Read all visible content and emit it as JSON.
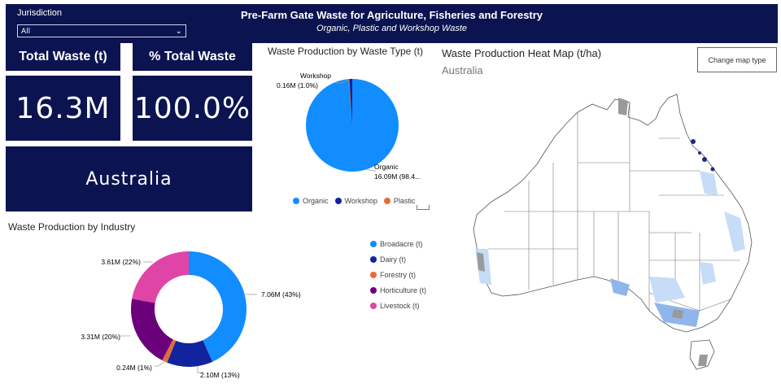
{
  "header": {
    "title": "Pre-Farm Gate Waste for Agriculture, Fisheries and Forestry",
    "subtitle": "Organic, Plastic and Workshop Waste",
    "jurisdiction_label": "Jurisdiction",
    "jurisdiction_value": "All"
  },
  "kpis": {
    "total_waste_label": "Total Waste (t)",
    "total_waste_value": "16.3M",
    "pct_total_label": "% Total Waste",
    "pct_total_value": "100.0%",
    "region_value": "Australia"
  },
  "waste_type_chart": {
    "title": "Waste Production by Waste Type (t)",
    "label_workshop_name": "Workshop",
    "label_workshop_value": "0.16M (1.0%)",
    "label_organic_name": "Organic",
    "label_organic_value": "16.09M (98.4...",
    "legend": [
      "Organic",
      "Workshop",
      "Plastic"
    ]
  },
  "industry_chart": {
    "title": "Waste Production by Industry",
    "labels": [
      "7.06M (43%)",
      "2.10M (13%)",
      "0.24M (1%)",
      "3.31M (20%)",
      "3.61M (22%)"
    ],
    "legend": [
      "Broadacre (t)",
      "Dairy (t)",
      "Forestry (t)",
      "Horticulture (t)",
      "Livestock (t)"
    ]
  },
  "map": {
    "title": "Waste Production Heat Map (t/ha)",
    "subtitle": "Australia",
    "button_label": "Change map type"
  },
  "colors": {
    "navy": "#0b1451",
    "organic": "#118dff",
    "workshop": "#12239e",
    "plastic": "#e66c37",
    "horticulture": "#6b007b",
    "livestock": "#e044a7"
  },
  "chart_data": [
    {
      "type": "pie",
      "title": "Waste Production by Waste Type (t)",
      "categories": [
        "Organic",
        "Workshop",
        "Plastic"
      ],
      "values": [
        16.09,
        0.16,
        0.05
      ],
      "unit": "M t"
    },
    {
      "type": "pie",
      "title": "Waste Production by Industry",
      "categories": [
        "Broadacre (t)",
        "Dairy (t)",
        "Forestry (t)",
        "Horticulture (t)",
        "Livestock (t)"
      ],
      "values": [
        7.06,
        2.1,
        0.24,
        3.31,
        3.61
      ],
      "unit": "M t",
      "donut": true
    }
  ]
}
